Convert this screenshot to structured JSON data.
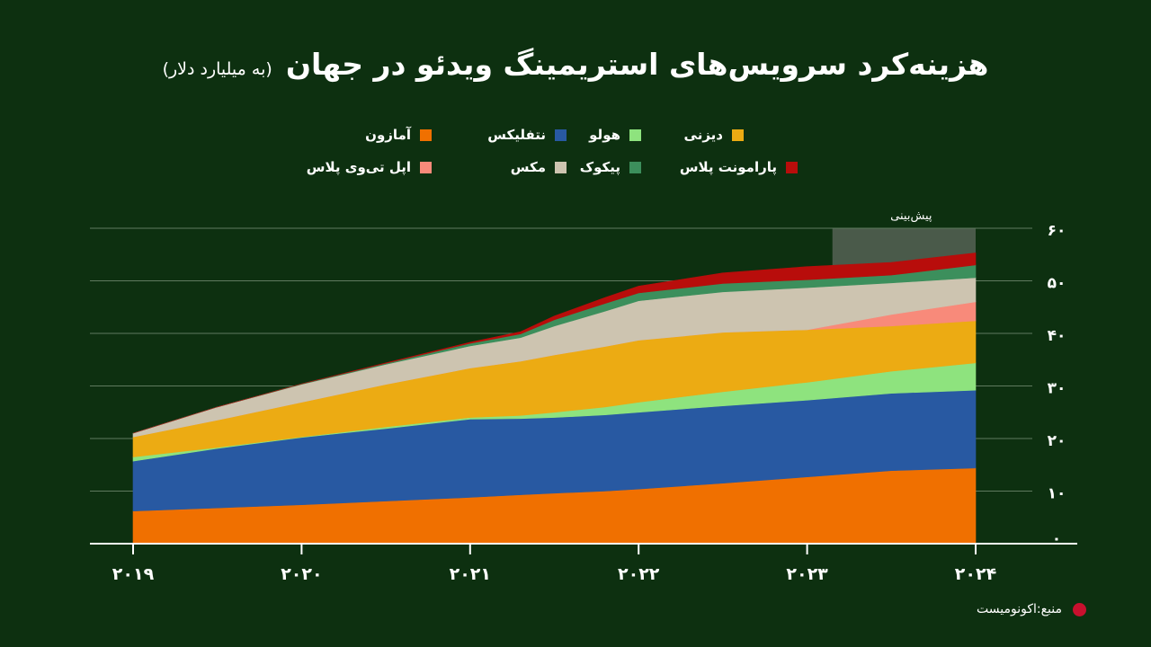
{
  "title": {
    "main": "هزینه‌کرد سرویس‌های استریمینگ ویدئو در جهان",
    "sub": "(به میلیارد دلار)"
  },
  "forecast_label": "پیش‌بینی",
  "source": "منبع:اکونومیست",
  "chart_data": {
    "type": "area",
    "stacked": true,
    "x": [
      2019,
      2019.5,
      2020,
      2020.5,
      2021,
      2021.3,
      2021.5,
      2021.8,
      2022,
      2022.5,
      2023,
      2023.5,
      2024
    ],
    "x_tick_values": [
      2019,
      2020,
      2021,
      2022,
      2023,
      2024
    ],
    "x_tick_labels": [
      "۲۰۱۹",
      "۲۰۲۰",
      "۲۰۲۱",
      "۲۰۲۲",
      "۲۰۲۳",
      "۲۰۲۴"
    ],
    "y_ticks": [
      0,
      10,
      20,
      30,
      40,
      50,
      60
    ],
    "y_tick_labels": [
      "۰",
      "۱۰",
      "۲۰",
      "۳۰",
      "۴۰",
      "۵۰",
      "۶۰"
    ],
    "ylim": [
      0,
      60
    ],
    "forecast_start": 2023.15,
    "forecast_end": 2024,
    "series": [
      {
        "name": "آمازون",
        "color": "#f07000",
        "values": [
          6.2,
          6.8,
          7.4,
          8.1,
          8.8,
          9.3,
          9.6,
          10.0,
          10.4,
          11.5,
          12.7,
          13.9,
          14.4
        ]
      },
      {
        "name": "نتفلیکس",
        "color": "#2859a2",
        "values": [
          9.5,
          11.3,
          12.8,
          13.8,
          14.9,
          14.5,
          14.4,
          14.5,
          14.6,
          14.7,
          14.6,
          14.7,
          14.8
        ]
      },
      {
        "name": "هولو",
        "color": "#8ee37e",
        "values": [
          0.8,
          0.2,
          0.1,
          0.3,
          0.3,
          0.6,
          1.0,
          1.5,
          1.9,
          2.7,
          3.4,
          4.2,
          5.2
        ]
      },
      {
        "name": "دیزنی",
        "color": "#ecab13",
        "values": [
          3.8,
          5.2,
          6.6,
          8.1,
          9.4,
          10.3,
          10.9,
          11.5,
          11.8,
          11.3,
          10.0,
          8.6,
          8.0
        ]
      },
      {
        "name": "اپل تی‌وی پلاس",
        "color": "#f88a7a",
        "values": [
          0.0,
          0.0,
          0.0,
          0.0,
          0.0,
          0.0,
          0.0,
          0.0,
          0.0,
          0.0,
          0.0,
          2.2,
          3.6
        ]
      },
      {
        "name": "مکس",
        "color": "#cdc4b0",
        "values": [
          0.7,
          2.5,
          3.4,
          3.8,
          4.2,
          4.5,
          5.5,
          6.7,
          7.5,
          7.7,
          8.0,
          6.0,
          4.6
        ]
      },
      {
        "name": "پیکوک",
        "color": "#3c8f5c",
        "values": [
          0.0,
          0.0,
          0.1,
          0.2,
          0.5,
          0.7,
          1.2,
          1.5,
          1.5,
          1.6,
          1.5,
          1.5,
          2.4
        ]
      },
      {
        "name": "پارامونت پلاس",
        "color": "#b80d0b",
        "values": [
          0.0,
          0.0,
          0.0,
          0.1,
          0.2,
          0.4,
          0.7,
          1.1,
          1.3,
          2.0,
          2.5,
          2.4,
          2.3
        ]
      }
    ],
    "legend": [
      {
        "name": "آمازون",
        "color": "#f07000"
      },
      {
        "name": "نتفلیکس",
        "color": "#2859a2"
      },
      {
        "name": "هولو",
        "color": "#8ee37e"
      },
      {
        "name": "دیزنی",
        "color": "#ecab13"
      },
      {
        "name": "اپل تی‌وی پلاس",
        "color": "#f88a7a"
      },
      {
        "name": "مکس",
        "color": "#cdc4b0"
      },
      {
        "name": "پیکوک",
        "color": "#3c8f5c"
      },
      {
        "name": "پارامونت پلاس",
        "color": "#b80d0b"
      }
    ],
    "legend_position": "top-center",
    "grid": true
  },
  "colors": {
    "background": "#0d3010",
    "gridline": "#5f7a5f",
    "axis": "#ffffff",
    "forecast_shade": "#4a5a4a",
    "source_dot": "#c8102e"
  }
}
